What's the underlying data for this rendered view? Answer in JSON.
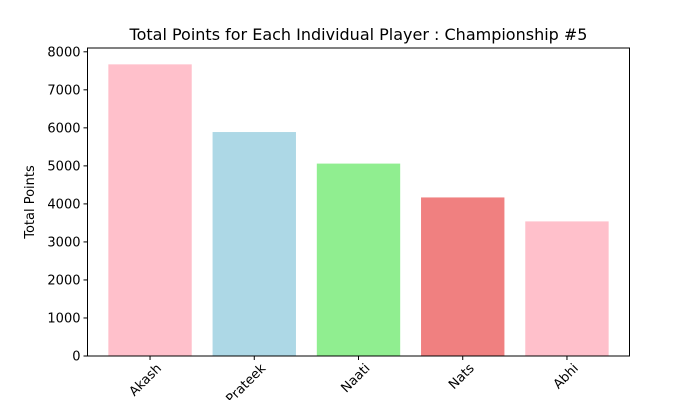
{
  "chart_data": {
    "type": "bar",
    "title": "Total Points for Each Individual Player : Championship #5",
    "xlabel": "",
    "ylabel": "Total Points",
    "categories": [
      "Akash",
      "Prateek",
      "Naati",
      "Nats",
      "Abhi"
    ],
    "values": [
      7670,
      5890,
      5060,
      4170,
      3540
    ],
    "colors": [
      "#ffc0cb",
      "#add8e6",
      "#90ee90",
      "#f08080",
      "#ffc0cb"
    ],
    "ylim": [
      0,
      8100
    ],
    "yticks": [
      0,
      1000,
      2000,
      3000,
      4000,
      5000,
      6000,
      7000,
      8000
    ],
    "grid": false,
    "legend": "none"
  }
}
